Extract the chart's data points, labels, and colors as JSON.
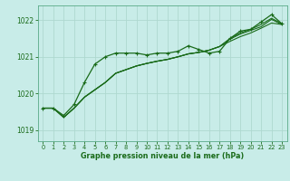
{
  "xlabel": "Graphe pression niveau de la mer (hPa)",
  "bg_color": "#c8ece8",
  "grid_color": "#aed8d0",
  "line_color": "#1a6b1a",
  "xlim": [
    -0.5,
    23.5
  ],
  "ylim": [
    1018.7,
    1022.4
  ],
  "yticks": [
    1019,
    1020,
    1021,
    1022
  ],
  "xticks": [
    0,
    1,
    2,
    3,
    4,
    5,
    6,
    7,
    8,
    9,
    10,
    11,
    12,
    13,
    14,
    15,
    16,
    17,
    18,
    19,
    20,
    21,
    22,
    23
  ],
  "series1_x": [
    0,
    1,
    2,
    3,
    4,
    5,
    6,
    7,
    8,
    9,
    10,
    11,
    12,
    13,
    14,
    15,
    16,
    17,
    18,
    19,
    20,
    21,
    22,
    23
  ],
  "series1_y": [
    1019.6,
    1019.6,
    1019.4,
    1019.7,
    1020.3,
    1020.8,
    1021.0,
    1021.1,
    1021.1,
    1021.1,
    1021.05,
    1021.1,
    1021.1,
    1021.15,
    1021.3,
    1021.2,
    1021.1,
    1021.15,
    1021.5,
    1021.7,
    1021.75,
    1021.95,
    1022.15,
    1021.9
  ],
  "series2_x": [
    0,
    1,
    2,
    3,
    4,
    5,
    6,
    7,
    8,
    9,
    10,
    11,
    12,
    13,
    14,
    15,
    16,
    17,
    18,
    19,
    20,
    21,
    22,
    23
  ],
  "series2_y": [
    1019.6,
    1019.6,
    1019.35,
    1019.6,
    1019.9,
    1020.1,
    1020.3,
    1020.55,
    1020.65,
    1020.75,
    1020.82,
    1020.88,
    1020.93,
    1021.0,
    1021.08,
    1021.12,
    1021.18,
    1021.28,
    1021.42,
    1021.55,
    1021.65,
    1021.78,
    1021.92,
    1021.88
  ],
  "series3_x": [
    0,
    1,
    2,
    3,
    4,
    5,
    6,
    7,
    8,
    9,
    10,
    11,
    12,
    13,
    14,
    15,
    16,
    17,
    18,
    19,
    20,
    21,
    22,
    23
  ],
  "series3_y": [
    1019.6,
    1019.6,
    1019.35,
    1019.6,
    1019.9,
    1020.1,
    1020.3,
    1020.55,
    1020.65,
    1020.75,
    1020.82,
    1020.88,
    1020.93,
    1021.0,
    1021.08,
    1021.12,
    1021.18,
    1021.28,
    1021.48,
    1021.62,
    1021.72,
    1021.82,
    1022.02,
    1021.88
  ],
  "series4_x": [
    0,
    1,
    2,
    3,
    4,
    5,
    6,
    7,
    8,
    9,
    10,
    11,
    12,
    13,
    14,
    15,
    16,
    17,
    18,
    19,
    20,
    21,
    22,
    23
  ],
  "series4_y": [
    1019.6,
    1019.6,
    1019.35,
    1019.6,
    1019.9,
    1020.1,
    1020.3,
    1020.55,
    1020.65,
    1020.75,
    1020.82,
    1020.88,
    1020.93,
    1021.0,
    1021.08,
    1021.12,
    1021.18,
    1021.28,
    1021.5,
    1021.65,
    1021.75,
    1021.88,
    1022.05,
    1021.9
  ]
}
